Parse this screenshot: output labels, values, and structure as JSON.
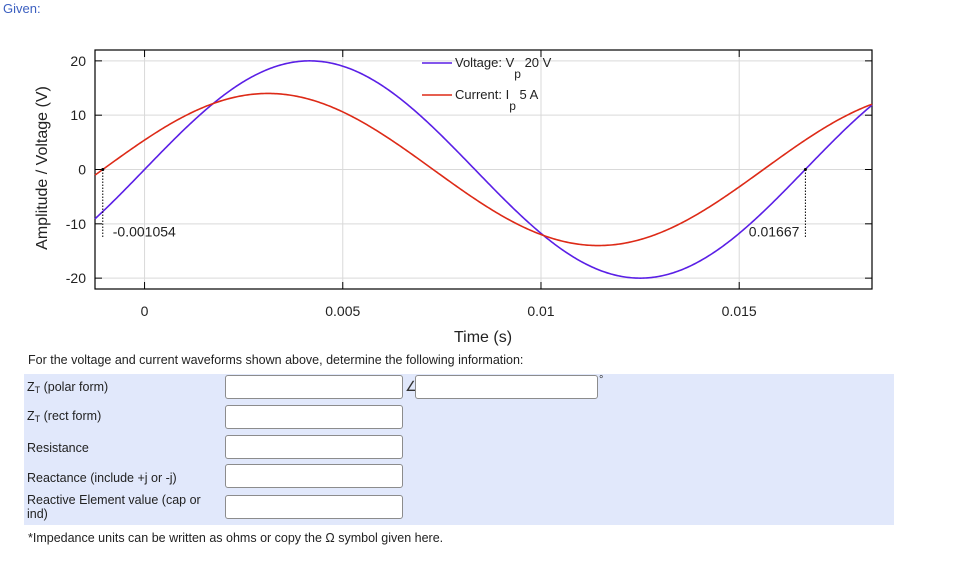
{
  "given_label": "Given:",
  "chart_data": {
    "type": "line",
    "xlabel": "Time (s)",
    "ylabel": "Amplitude / Voltage (V)",
    "xlim": [
      -0.00125,
      0.01835
    ],
    "ylim": [
      -22,
      22
    ],
    "xticks": [
      0,
      0.005,
      0.01,
      0.015
    ],
    "xtick_labels": [
      "0",
      "0.005",
      "0.01",
      "0.015"
    ],
    "yticks": [
      20,
      10,
      0,
      -10,
      -20
    ],
    "ytick_labels": [
      "20",
      "10",
      "0",
      "-10",
      "-20"
    ],
    "grid": true,
    "legend_position": "top-center",
    "series": [
      {
        "name_prefix": "Voltage: V",
        "name_sub": "p",
        "name_suffix": " 20 V",
        "color": "#5a1fe6",
        "amplitude": 20,
        "frequency_hz": 60,
        "zero_crossing_s": 0.0
      },
      {
        "name_prefix": "Current: I",
        "name_sub": "p",
        "name_suffix": " 5 A",
        "color": "#dd2a17",
        "amplitude": 14,
        "frequency_hz": 60,
        "zero_crossing_s": -0.001054
      }
    ],
    "annotations": [
      {
        "text": "-0.001054",
        "x": -0.001054
      },
      {
        "text": "0.01667",
        "x": 0.01667
      }
    ]
  },
  "question_text": "For the voltage and current waveforms shown above, determine the following information:",
  "form": {
    "rows": [
      {
        "label_main": "Z",
        "label_sub": "T",
        "label_rest": " (polar form)",
        "value": ""
      },
      {
        "label_main": "Z",
        "label_sub": "T",
        "label_rest": " (rect form)",
        "value": ""
      },
      {
        "label_main": "Resistance",
        "label_sub": "",
        "label_rest": "",
        "value": ""
      },
      {
        "label_main": "Reactance (include +j or -j)",
        "label_sub": "",
        "label_rest": "",
        "value": ""
      },
      {
        "label_main": "Reactive Element value (cap or ind)",
        "label_sub": "",
        "label_rest": "",
        "value": ""
      }
    ],
    "angle_symbol": "∠",
    "degree_symbol": "°",
    "angle_value": ""
  },
  "footnote": "*Impedance units can be written as ohms or copy the Ω symbol given here."
}
